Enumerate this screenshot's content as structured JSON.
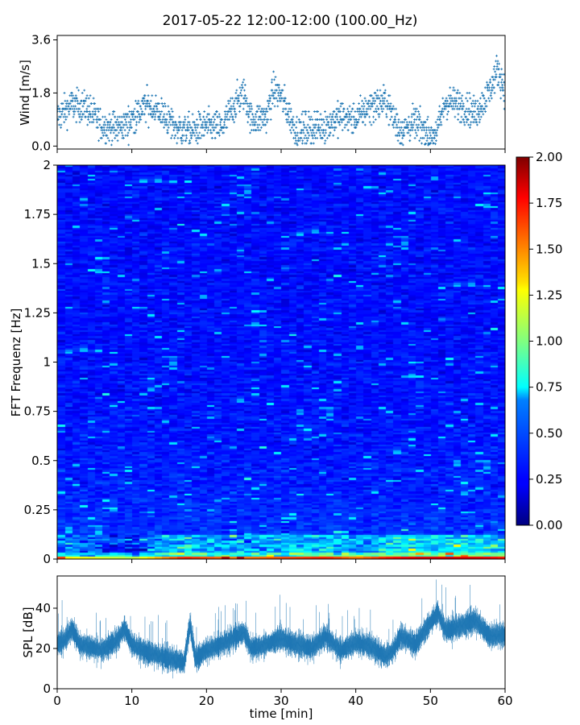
{
  "chart_data": [
    {
      "panel": "wind",
      "type": "scatter",
      "title": "2017-05-22 12:00-12:00 (100.00_Hz)",
      "ylabel": "Wind [m/s]",
      "ylim": [
        -0.1,
        3.75
      ],
      "yticks": [
        0.0,
        1.8,
        3.6
      ],
      "ytick_labels": [
        "0.0",
        "1.8",
        "3.6"
      ],
      "xlim": [
        0,
        60
      ],
      "color": "#1f77b4",
      "series": [
        {
          "x": [
            0,
            2,
            4,
            6,
            8,
            10,
            12,
            14,
            16,
            18,
            20,
            22,
            24,
            25,
            26,
            28,
            29,
            30,
            31,
            32,
            34,
            36,
            38,
            40,
            42,
            44,
            46,
            48,
            50,
            51,
            52,
            54,
            56,
            58,
            59,
            60
          ],
          "values": [
            1.0,
            1.4,
            1.3,
            0.7,
            0.6,
            0.9,
            1.4,
            1.1,
            0.6,
            0.5,
            0.7,
            0.6,
            1.5,
            1.8,
            0.9,
            1.0,
            1.9,
            1.7,
            1.1,
            0.5,
            0.6,
            0.7,
            1.0,
            0.9,
            1.4,
            1.5,
            0.5,
            0.8,
            0.3,
            0.6,
            1.5,
            1.4,
            1.1,
            1.9,
            2.6,
            1.9
          ]
        }
      ]
    },
    {
      "panel": "spectrogram",
      "type": "heatmap",
      "ylabel": "FFT Frequenz [Hz]",
      "ylim": [
        0,
        2
      ],
      "yticks": [
        0,
        0.25,
        0.5,
        0.75,
        1,
        1.25,
        1.5,
        1.75,
        2
      ],
      "ytick_labels": [
        "0",
        "0.25",
        "0.5",
        "0.75",
        "1",
        "1.25",
        "1.5",
        "1.75",
        "2"
      ],
      "xlim": [
        0,
        60
      ],
      "colormap": "jet",
      "colorbar": {
        "vmin": 0.0,
        "vmax": 2.0,
        "ticks": [
          0.0,
          0.25,
          0.5,
          0.75,
          1.0,
          1.25,
          1.5,
          1.75,
          2.0
        ],
        "tick_labels": [
          "0.00",
          "0.25",
          "0.50",
          "0.75",
          "1.00",
          "1.25",
          "1.50",
          "1.75",
          "2.00"
        ]
      },
      "time_profile": {
        "x": [
          0,
          10,
          17,
          20,
          24,
          30,
          36,
          40,
          44,
          48,
          52,
          56,
          60
        ],
        "low_freq_level": [
          1.3,
          1.1,
          1.7,
          1.6,
          1.5,
          1.6,
          1.7,
          1.5,
          1.7,
          1.8,
          1.8,
          1.8,
          1.7
        ]
      }
    },
    {
      "panel": "spl",
      "type": "line",
      "ylabel": "SPL [dB]",
      "xlabel": "time [min]",
      "ylim": [
        0,
        56
      ],
      "yticks": [
        0,
        20,
        40
      ],
      "ytick_labels": [
        "0",
        "20",
        "40"
      ],
      "xlim": [
        0,
        60
      ],
      "xticks": [
        0,
        10,
        20,
        30,
        40,
        50,
        60
      ],
      "xtick_labels": [
        "0",
        "10",
        "20",
        "30",
        "40",
        "50",
        "60"
      ],
      "color": "#1f77b4",
      "series": [
        {
          "x": [
            0,
            1,
            2,
            3,
            4,
            6,
            8,
            9,
            10,
            12,
            14,
            16,
            17,
            17.8,
            18.5,
            20,
            22,
            24,
            25,
            26,
            28,
            30,
            31,
            32,
            34,
            36,
            38,
            40,
            42,
            44,
            45,
            46,
            48,
            50,
            51,
            52,
            54,
            56,
            58,
            60
          ],
          "values": [
            22,
            24,
            30,
            22,
            21,
            19,
            24,
            30,
            22,
            18,
            16,
            14,
            13,
            32,
            15,
            19,
            22,
            26,
            28,
            20,
            22,
            25,
            23,
            22,
            20,
            26,
            19,
            23,
            21,
            16,
            19,
            26,
            22,
            33,
            38,
            29,
            31,
            34,
            26,
            27
          ]
        }
      ]
    }
  ]
}
